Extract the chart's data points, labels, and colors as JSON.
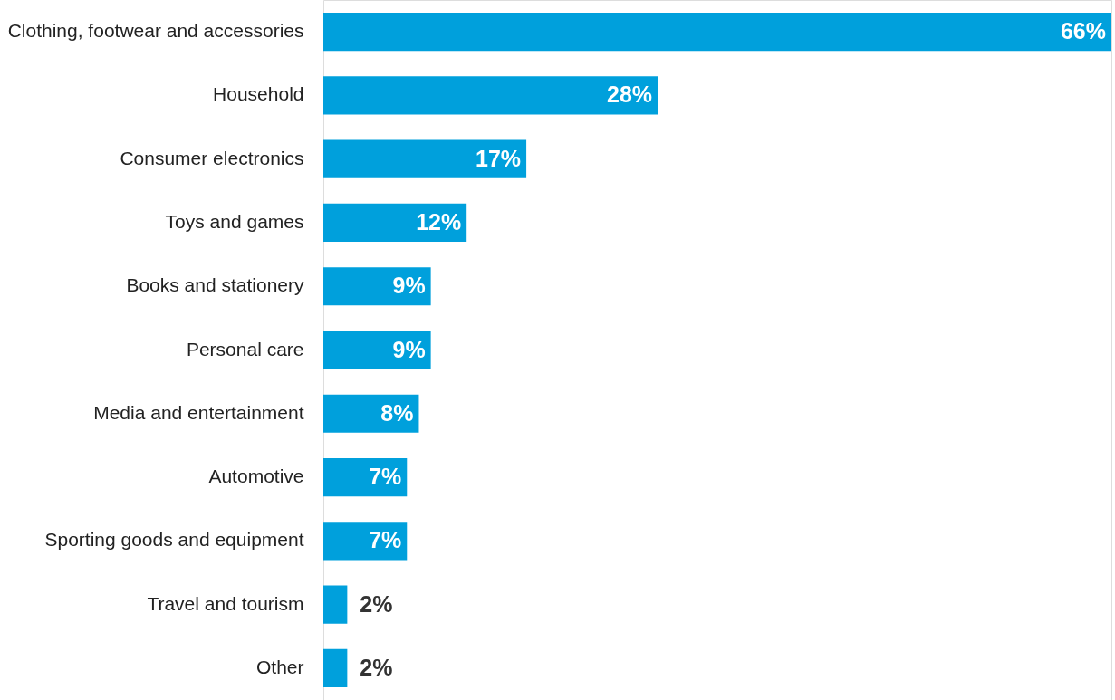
{
  "chart_data": {
    "type": "bar",
    "orientation": "horizontal",
    "categories": [
      "Clothing, footwear and accessories",
      "Household",
      "Consumer electronics",
      "Toys and games",
      "Books and stationery",
      "Personal care",
      "Media and entertainment",
      "Automotive",
      "Sporting goods and equipment",
      "Travel and tourism",
      "Other"
    ],
    "values": [
      66,
      28,
      17,
      12,
      9,
      9,
      8,
      7,
      7,
      2,
      2
    ],
    "value_labels": [
      "66%",
      "28%",
      "17%",
      "12%",
      "9%",
      "9%",
      "8%",
      "7%",
      "7%",
      "2%",
      "2%"
    ],
    "color": "#00a0dc"
  }
}
